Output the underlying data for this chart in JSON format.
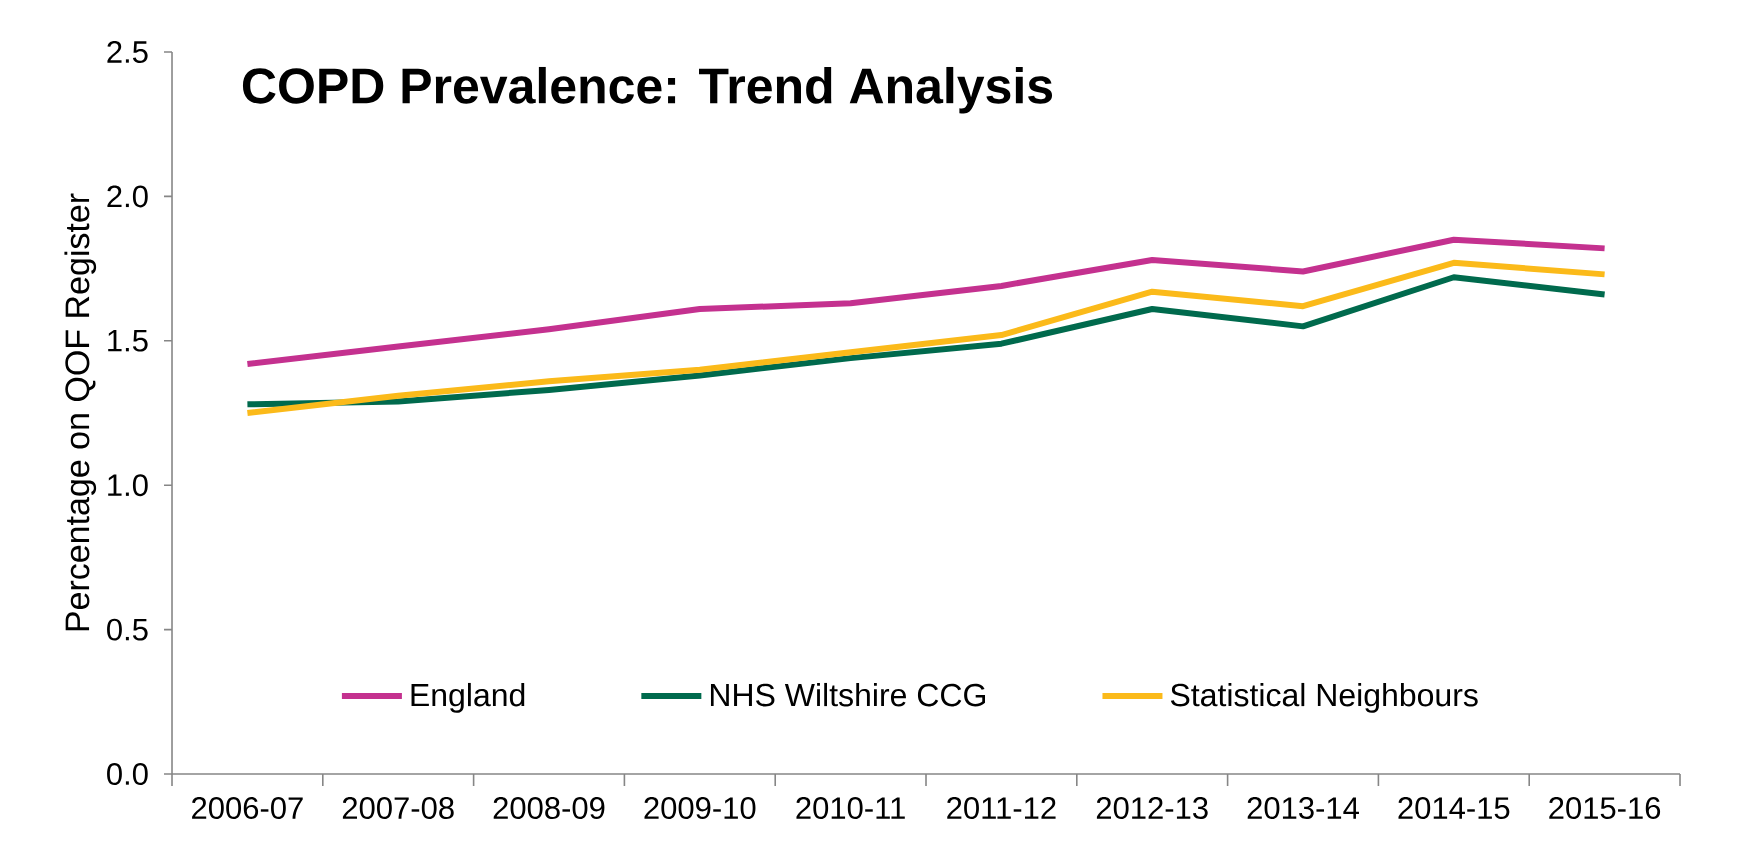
{
  "chart_data": {
    "type": "line",
    "title": "COPD Prevalence: Trend Analysis",
    "ylabel": "Percentage on QOF Register",
    "categories": [
      "2006-07",
      "2007-08",
      "2008-09",
      "2009-10",
      "2010-11",
      "2011-12",
      "2012-13",
      "2013-14",
      "2014-15",
      "2015-16"
    ],
    "series": [
      {
        "name": "England",
        "color": "#c4318f",
        "values": [
          1.42,
          1.48,
          1.54,
          1.61,
          1.63,
          1.69,
          1.78,
          1.74,
          1.85,
          1.82
        ]
      },
      {
        "name": "NHS Wiltshire CCG",
        "color": "#006a4d",
        "values": [
          1.28,
          1.29,
          1.33,
          1.38,
          1.44,
          1.49,
          1.61,
          1.55,
          1.72,
          1.66
        ]
      },
      {
        "name": "Statistical Neighbours",
        "color": "#fbba1a",
        "values": [
          1.25,
          1.31,
          1.36,
          1.4,
          1.46,
          1.52,
          1.67,
          1.62,
          1.77,
          1.73
        ]
      }
    ],
    "ylim": [
      0,
      2.5
    ],
    "yticks": [
      {
        "value": 0,
        "label": "0.0"
      },
      0.5,
      {
        "value": 1,
        "label": "1.0"
      },
      1.5,
      {
        "value": 2,
        "label": "2.0"
      },
      2.5
    ],
    "legend": "bottom",
    "line_style": "solid"
  }
}
